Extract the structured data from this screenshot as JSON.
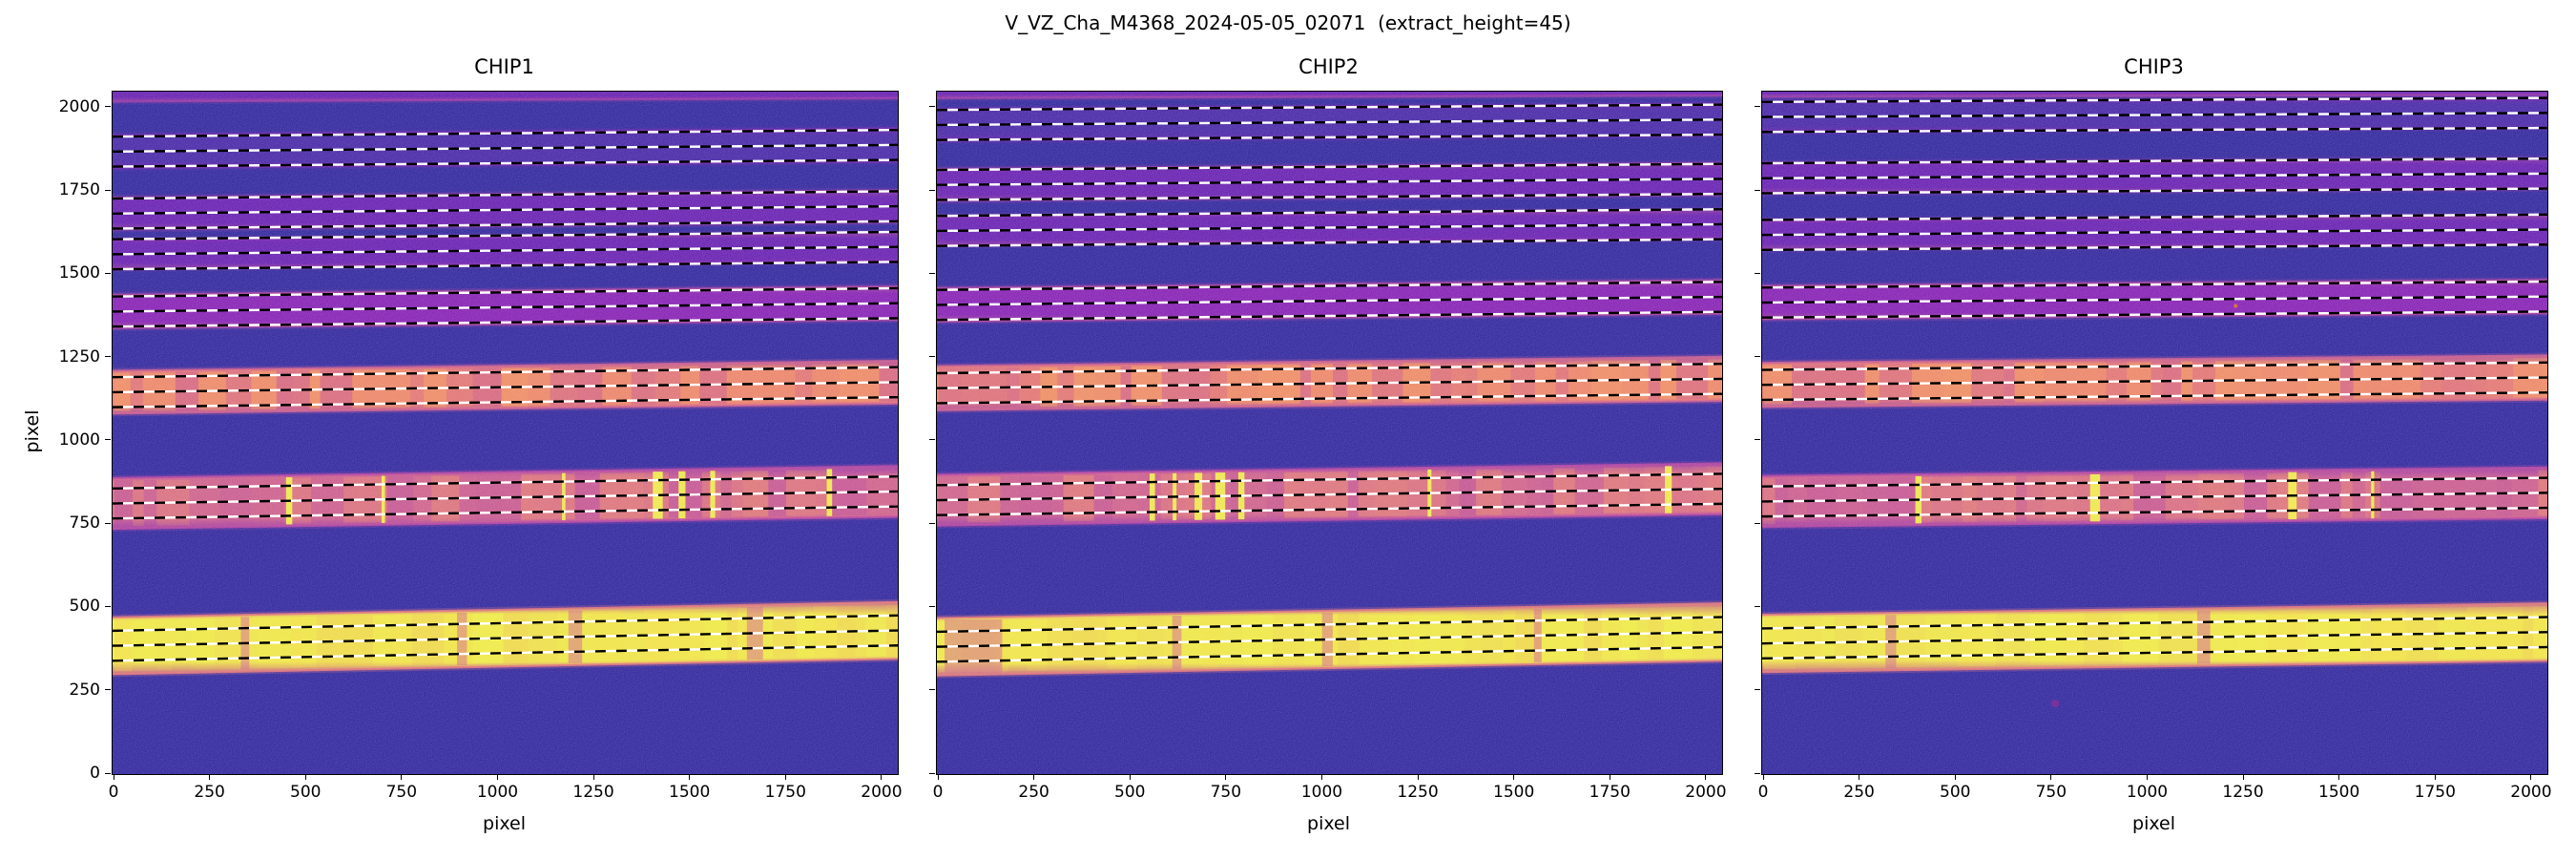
{
  "chart_data": {
    "type": "heatmap",
    "title": "V_VZ_Cha_M4368_2024-05-05_02071  (extract_height=45)",
    "xlabel": "pixel",
    "ylabel": "pixel",
    "extract_height": 45,
    "colormap": "plasma",
    "x_range": [
      -5,
      2040
    ],
    "y_range": [
      0,
      2048
    ],
    "x_ticks": [
      0,
      250,
      500,
      750,
      1000,
      1250,
      1500,
      1750,
      2000
    ],
    "y_ticks": [
      0,
      250,
      500,
      750,
      1000,
      1250,
      1500,
      1750,
      2000
    ],
    "colors": {
      "background": "#140a8c",
      "trace_black": "#000000",
      "trace_white": "#ffffff",
      "styles": {
        "dark-faint": {
          "core": "#350c9a",
          "coreOp": 0.85,
          "edge": "#7e03a8",
          "edgeOp": 0.5
        },
        "pink-faint": {
          "core": "#5c02a6",
          "coreOp": 0.9,
          "edge": "#a62098",
          "edgeOp": 0.65
        },
        "pink-mid": {
          "core": "#7e03a8",
          "coreOp": 0.95,
          "edge": "#b12a90",
          "edgeOp": 0.85
        },
        "orange": {
          "core": "#ee7352",
          "coreOp": 1,
          "edge": "#cc4778",
          "edgeOp": 0.95,
          "mLight": "#fb9d3a",
          "mDark": "#b12a90",
          "fBright": "#fcce25",
          "fDark": "#9c2f9e"
        },
        "pink-streaked": {
          "core": "#d6596f",
          "coreOp": 1,
          "edge": "#b12a90",
          "edgeOp": 0.95,
          "mLight": "#ef7e50",
          "mDark": "#a01d9a",
          "fBright": "#f4f32b",
          "fDark": "#8f0da4"
        },
        "yellow": {
          "core": "#f2f525",
          "coreOp": 1,
          "edge": "#e16462",
          "edgeOp": 1,
          "mLight": "#fcce25",
          "mDark": "#f5b031",
          "fBright": "#ffffb0",
          "fDark": "#d35a78"
        }
      }
    },
    "panels": [
      {
        "label": "CHIP1",
        "orders": [
          {
            "y": 2052,
            "tilt": 10,
            "hw": 34,
            "style": "pink-faint",
            "trace": false
          },
          {
            "y": 1868,
            "tilt": 20,
            "hw": 50,
            "style": "dark-faint",
            "trace": true
          },
          {
            "y": 1682,
            "tilt": 22,
            "hw": 48,
            "style": "pink-faint",
            "trace": true
          },
          {
            "y": 1560,
            "tilt": 22,
            "hw": 44,
            "style": "pink-faint",
            "trace": true
          },
          {
            "y": 1388,
            "tilt": 25,
            "hw": 50,
            "style": "pink-mid",
            "trace": true
          },
          {
            "y": 1146,
            "tilt": 30,
            "hw": 64,
            "style": "orange",
            "trace": true
          },
          {
            "y": 812,
            "tilt": 36,
            "hw": 76,
            "style": "pink-streaked",
            "trace": true,
            "features": [
              {
                "x": 455,
                "w": 16,
                "k": "b"
              },
              {
                "x": 700,
                "w": 9,
                "k": "b"
              },
              {
                "x": 1170,
                "w": 9,
                "k": "b"
              },
              {
                "x": 1415,
                "w": 26,
                "k": "b"
              },
              {
                "x": 1478,
                "w": 18,
                "k": "b"
              },
              {
                "x": 1558,
                "w": 13,
                "k": "b"
              },
              {
                "x": 1862,
                "w": 14,
                "k": "b"
              }
            ]
          },
          {
            "y": 385,
            "tilt": 46,
            "hw": 85,
            "style": "yellow",
            "trace": true,
            "features": [
              {
                "x": 340,
                "w": 22,
                "k": "d"
              },
              {
                "x": 905,
                "w": 26,
                "k": "d"
              },
              {
                "x": 1200,
                "w": 36,
                "k": "d"
              },
              {
                "x": 1668,
                "w": 42,
                "k": "d"
              }
            ]
          }
        ]
      },
      {
        "label": "CHIP2",
        "orders": [
          {
            "y": 2058,
            "tilt": 8,
            "hw": 30,
            "style": "pink-faint",
            "trace": false
          },
          {
            "y": 1948,
            "tilt": 16,
            "hw": 48,
            "style": "dark-faint",
            "trace": true
          },
          {
            "y": 1768,
            "tilt": 18,
            "hw": 48,
            "style": "pink-faint",
            "trace": true
          },
          {
            "y": 1630,
            "tilt": 20,
            "hw": 44,
            "style": "pink-faint",
            "trace": true
          },
          {
            "y": 1408,
            "tilt": 24,
            "hw": 50,
            "style": "pink-mid",
            "trace": true
          },
          {
            "y": 1158,
            "tilt": 28,
            "hw": 66,
            "style": "orange",
            "trace": true
          },
          {
            "y": 822,
            "tilt": 34,
            "hw": 76,
            "style": "pink-streaked",
            "trace": true,
            "features": [
              {
                "x": 556,
                "w": 14,
                "k": "b"
              },
              {
                "x": 614,
                "w": 10,
                "k": "b"
              },
              {
                "x": 676,
                "w": 20,
                "k": "b"
              },
              {
                "x": 733,
                "w": 26,
                "k": "b"
              },
              {
                "x": 788,
                "w": 16,
                "k": "b"
              },
              {
                "x": 1278,
                "w": 10,
                "k": "b"
              },
              {
                "x": 1900,
                "w": 18,
                "k": "b"
              }
            ]
          },
          {
            "y": 382,
            "tilt": 44,
            "hw": 86,
            "style": "yellow",
            "trace": true,
            "features": [
              {
                "x": 90,
                "w": 150,
                "k": "d"
              },
              {
                "x": 620,
                "w": 24,
                "k": "d"
              },
              {
                "x": 1012,
                "w": 28,
                "k": "d"
              },
              {
                "x": 1560,
                "w": 20,
                "k": "d"
              }
            ]
          }
        ]
      },
      {
        "label": "CHIP3",
        "orders": [
          {
            "y": 2060,
            "tilt": 6,
            "hw": 28,
            "style": "pink-faint",
            "trace": false
          },
          {
            "y": 1972,
            "tilt": 12,
            "hw": 46,
            "style": "dark-faint",
            "trace": true
          },
          {
            "y": 1788,
            "tilt": 14,
            "hw": 46,
            "style": "pink-faint",
            "trace": true
          },
          {
            "y": 1618,
            "tilt": 16,
            "hw": 44,
            "style": "pink-faint",
            "trace": true
          },
          {
            "y": 1415,
            "tilt": 18,
            "hw": 50,
            "style": "pink-mid",
            "trace": true
          },
          {
            "y": 1168,
            "tilt": 22,
            "hw": 66,
            "style": "orange",
            "trace": true
          },
          {
            "y": 818,
            "tilt": 26,
            "hw": 76,
            "style": "pink-streaked",
            "trace": true,
            "features": [
              {
                "x": 402,
                "w": 16,
                "k": "b"
              },
              {
                "x": 862,
                "w": 26,
                "k": "b"
              },
              {
                "x": 1376,
                "w": 22,
                "k": "b"
              },
              {
                "x": 1585,
                "w": 8,
                "k": "b"
              }
            ]
          },
          {
            "y": 392,
            "tilt": 34,
            "hw": 86,
            "style": "yellow",
            "trace": true,
            "features": [
              {
                "x": 330,
                "w": 28,
                "k": "d"
              },
              {
                "x": 1145,
                "w": 34,
                "k": "d"
              }
            ]
          }
        ],
        "spots": [
          {
            "x": 758,
            "y": 212,
            "r": 10,
            "c": "#8a2f9b",
            "op": 0.8
          },
          {
            "x": 1228,
            "y": 1405,
            "r": 5,
            "c": "#e07b3f",
            "op": 0.9
          }
        ]
      }
    ]
  }
}
